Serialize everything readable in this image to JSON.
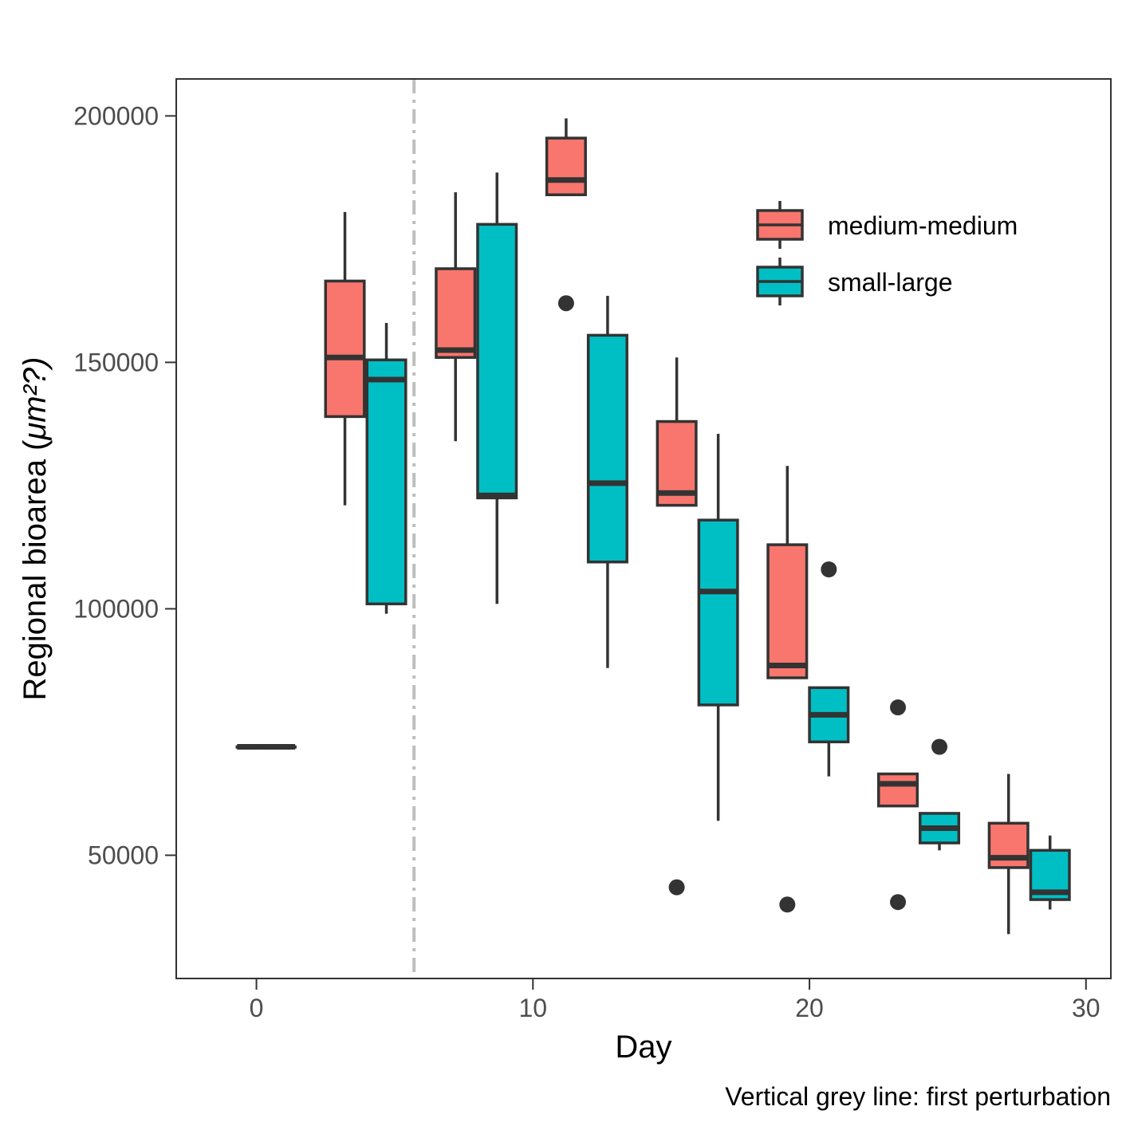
{
  "chart_data": {
    "type": "box",
    "xlabel": "Day",
    "ylabel_prefix": "Regional bioarea (",
    "ylabel_unit": "μm²?)",
    "caption": "Vertical grey line: first perturbation",
    "xlim": [
      -2.9,
      30.9
    ],
    "ylim": [
      25000,
      207500
    ],
    "x_ticks": [
      0,
      10,
      20,
      30
    ],
    "y_ticks": [
      50000,
      100000,
      150000,
      200000
    ],
    "perturbation_day": 5.7,
    "box_width_days": 1.4,
    "series": [
      {
        "name": "medium-medium",
        "color": "#f8766d",
        "boxes": [
          {
            "day": 0,
            "min": 72000,
            "q1": 72000,
            "median": 72000,
            "q3": 72000,
            "max": 72000,
            "outliers": []
          },
          {
            "day": 3.2,
            "min": 121000,
            "q1": 139000,
            "median": 151000,
            "q3": 166500,
            "max": 180500,
            "outliers": []
          },
          {
            "day": 7.2,
            "min": 134000,
            "q1": 151000,
            "median": 152500,
            "q3": 169000,
            "max": 184500,
            "outliers": []
          },
          {
            "day": 11.2,
            "min": 184000,
            "q1": 184000,
            "median": 187000,
            "q3": 195500,
            "max": 199500,
            "outliers": [
              162000
            ]
          },
          {
            "day": 15.2,
            "min": 121000,
            "q1": 121000,
            "median": 123500,
            "q3": 138000,
            "max": 151000,
            "outliers": [
              43500
            ]
          },
          {
            "day": 19.2,
            "min": 86000,
            "q1": 86000,
            "median": 88500,
            "q3": 113000,
            "max": 129000,
            "outliers": [
              40000
            ]
          },
          {
            "day": 23.2,
            "min": 60000,
            "q1": 60000,
            "median": 64500,
            "q3": 66500,
            "max": 66500,
            "outliers": [
              80000,
              40500
            ]
          },
          {
            "day": 27.2,
            "min": 34000,
            "q1": 47500,
            "median": 49500,
            "q3": 56500,
            "max": 66500,
            "outliers": []
          }
        ]
      },
      {
        "name": "small-large",
        "color": "#00bfc4",
        "boxes": [
          {
            "day": 0.7,
            "min": 72000,
            "q1": 72000,
            "median": 72000,
            "q3": 72000,
            "max": 72000,
            "outliers": []
          },
          {
            "day": 4.7,
            "min": 99000,
            "q1": 101000,
            "median": 146500,
            "q3": 150500,
            "max": 158000,
            "outliers": []
          },
          {
            "day": 8.7,
            "min": 101000,
            "q1": 122500,
            "median": 123000,
            "q3": 178000,
            "max": 188500,
            "outliers": []
          },
          {
            "day": 12.7,
            "min": 88000,
            "q1": 109500,
            "median": 125500,
            "q3": 155500,
            "max": 163500,
            "outliers": []
          },
          {
            "day": 16.7,
            "min": 57000,
            "q1": 80500,
            "median": 103500,
            "q3": 118000,
            "max": 135500,
            "outliers": []
          },
          {
            "day": 20.7,
            "min": 66000,
            "q1": 73000,
            "median": 78500,
            "q3": 84000,
            "max": 84000,
            "outliers": [
              108000
            ]
          },
          {
            "day": 24.7,
            "min": 51000,
            "q1": 52500,
            "median": 55500,
            "q3": 58500,
            "max": 58500,
            "outliers": [
              72000
            ]
          },
          {
            "day": 28.7,
            "min": 39000,
            "q1": 41000,
            "median": 42500,
            "q3": 51000,
            "max": 54000,
            "outliers": []
          }
        ]
      }
    ],
    "legend": {
      "position": "top-right-inside",
      "entries": [
        "medium-medium",
        "small-large"
      ]
    },
    "grid": false
  }
}
